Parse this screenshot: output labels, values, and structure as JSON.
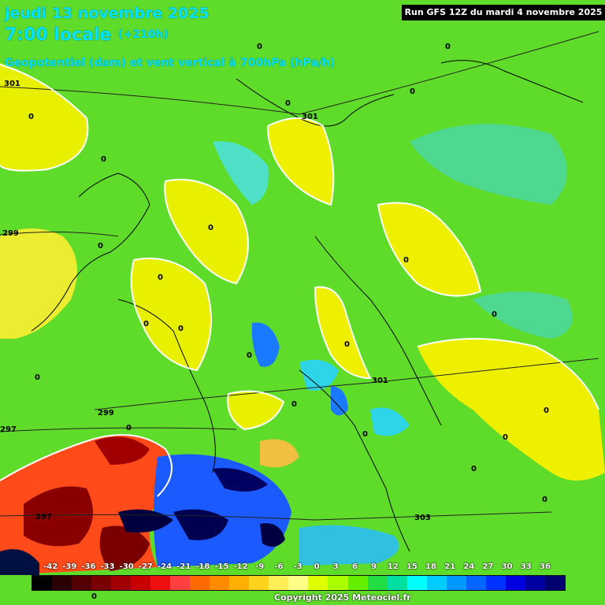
{
  "header": {
    "date": "jeudi 13 novembre 2025",
    "time": "7:00 locale",
    "lead": "(+210h)",
    "description": "Geopotentiel (dam) et vent vertical à 700hPa (hPa/h)",
    "run": "Run GFS 12Z du mardi 4 novembre 2025"
  },
  "legend": {
    "ticks": [
      "-42",
      "-39",
      "-36",
      "-33",
      "-30",
      "-27",
      "-24",
      "-21",
      "-18",
      "-15",
      "-12",
      "-9",
      "-6",
      "-3",
      "0",
      "3",
      "6",
      "9",
      "12",
      "15",
      "18",
      "21",
      "24",
      "27",
      "30",
      "33",
      "36"
    ],
    "colors": [
      "#000000",
      "#2a0000",
      "#550000",
      "#7a0000",
      "#a00000",
      "#c80000",
      "#ee1010",
      "#ff4040",
      "#ff6a00",
      "#ff8c00",
      "#ffb000",
      "#ffd21e",
      "#ffee55",
      "#ffff88",
      "#e0ff00",
      "#aaff00",
      "#66ee00",
      "#22dd44",
      "#00e0a0",
      "#00ffff",
      "#00ccff",
      "#0099ff",
      "#0066ff",
      "#0033ff",
      "#0000e0",
      "#0000a0",
      "#000070"
    ]
  },
  "contour_labels": [
    {
      "text": "301"
    },
    {
      "text": "301"
    },
    {
      "text": "299"
    },
    {
      "text": "299"
    },
    {
      "text": "297"
    },
    {
      "text": "297"
    },
    {
      "text": "301"
    },
    {
      "text": "303"
    },
    {
      "text": "0"
    },
    {
      "text": "0"
    },
    {
      "text": "0"
    },
    {
      "text": "0"
    },
    {
      "text": "0"
    },
    {
      "text": "0"
    },
    {
      "text": "0"
    },
    {
      "text": "0"
    },
    {
      "text": "0"
    },
    {
      "text": "0"
    },
    {
      "text": "0"
    },
    {
      "text": "0"
    },
    {
      "text": "0"
    },
    {
      "text": "0"
    },
    {
      "text": "0"
    },
    {
      "text": "0"
    },
    {
      "text": "0"
    },
    {
      "text": "0"
    },
    {
      "text": "0"
    },
    {
      "text": "0"
    },
    {
      "text": "0"
    },
    {
      "text": "0"
    },
    {
      "text": "0"
    },
    {
      "text": "0"
    }
  ],
  "copyright": "Copyright 2025 Meteociel.fr"
}
